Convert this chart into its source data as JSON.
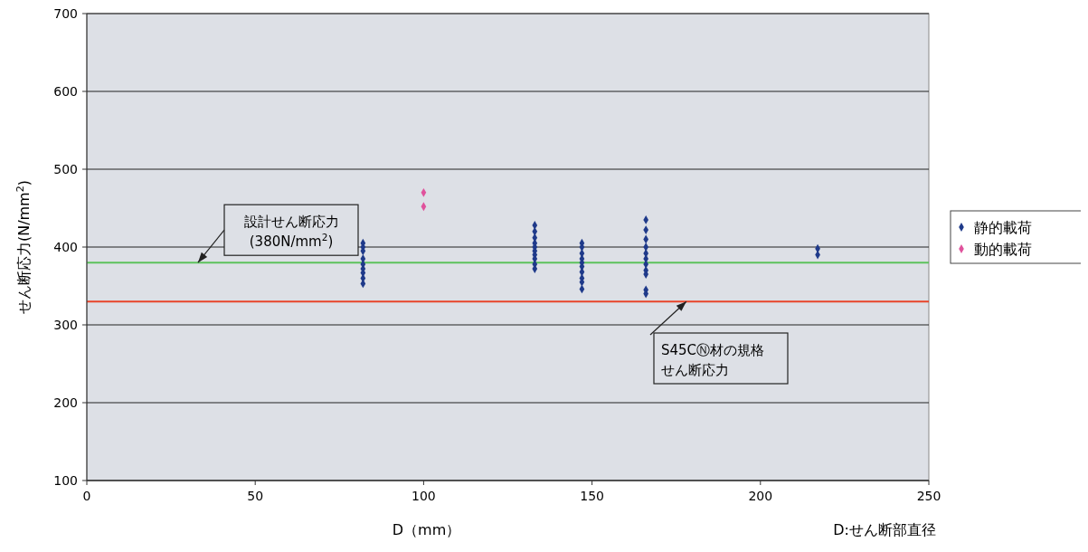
{
  "chart_data": {
    "type": "scatter",
    "xlabel": "D（mm）",
    "ylabel": "せん断応力(N/mm$^{2}$)",
    "xlim": [
      0,
      250
    ],
    "ylim": [
      100,
      700
    ],
    "xticks": [
      0,
      50,
      100,
      150,
      200,
      250
    ],
    "yticks": [
      100,
      200,
      300,
      400,
      500,
      600,
      700
    ],
    "grid": "y",
    "legend": "right",
    "marker": "diamond",
    "series": [
      {
        "name": "静的載荷",
        "color": "#1f3a8a",
        "x": [
          82,
          82,
          82,
          82,
          82,
          82,
          82,
          82,
          82,
          133,
          133,
          133,
          133,
          133,
          133,
          133,
          133,
          133,
          133,
          147,
          147,
          147,
          147,
          147,
          147,
          147,
          147,
          147,
          147,
          166,
          166,
          166,
          166,
          166,
          166,
          166,
          166,
          166,
          166,
          166,
          217,
          217
        ],
        "values": [
          405,
          400,
          395,
          385,
          378,
          372,
          367,
          360,
          353,
          428,
          420,
          412,
          405,
          400,
          395,
          390,
          385,
          378,
          372,
          405,
          400,
          392,
          385,
          380,
          375,
          368,
          360,
          355,
          346,
          435,
          422,
          410,
          400,
          392,
          385,
          378,
          370,
          365,
          345,
          340,
          398,
          390
        ]
      },
      {
        "name": "動的載荷",
        "color": "#e0529c",
        "x": [
          100,
          100
        ],
        "values": [
          470,
          452
        ]
      }
    ],
    "ref_lines": [
      {
        "axis": "y",
        "value": 380,
        "color": "#5cc25c",
        "label": "設計せん断応力(380N/mm$^{2}$)"
      },
      {
        "axis": "y",
        "value": 330,
        "color": "#e8442a",
        "label": "S45CⓃ材の規格せん断応力"
      }
    ],
    "annotations": [
      "D:せん断部直径"
    ]
  }
}
